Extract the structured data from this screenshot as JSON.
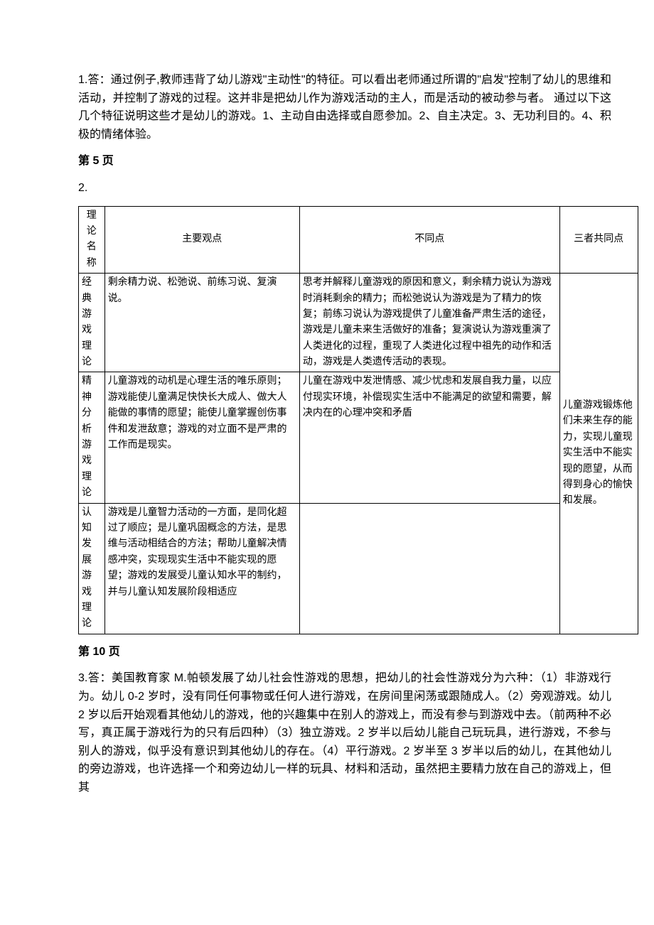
{
  "answer1": "1.答：通过例子,教师违背了幼儿游戏\"主动性\"的特征。可以看出老师通过所谓的\"启发\"控制了幼儿的思维和活动，并控制了游戏的过程。这并非是把幼儿作为游戏活动的主人，而是活动的被动参与者。 通过以下这几个特征说明这些才是幼儿的游戏。1、主动自由选择或自愿参加。2、自主决定。3、无功利目的。4、积极的情绪体验。",
  "page5": "第 5 页",
  "question2": "2.",
  "table": {
    "headers": {
      "name": "理论名称",
      "view": "主要观点",
      "diff": "不同点",
      "common": "三者共同点"
    },
    "rows": [
      {
        "name": "经典游戏理论",
        "view": "剩余精力说、松弛说、前练习说、复演说。",
        "diff": "思考并解释儿童游戏的原因和意义，剩余精力说认为游戏时消耗剩余的精力；而松弛说认为游戏是为了精力的恢复；前练习说认为游戏提供了儿童准备严肃生活的途径，游戏是儿童未来生活做好的准备；复演说认为游戏重演了人类进化的过程，重现了人类进化过程中祖先的动作和活动，游戏是人类遗传活动的表现。"
      },
      {
        "name": "精神分析游戏理论",
        "view": "儿童游戏的动机是心理生活的唯乐原则；游戏能使儿童满足快快长大成人、做大人能做的事情的愿望；能使儿童掌握创伤事件和发泄敌意；游戏的对立面不是严肃的工作而是现实。",
        "diff": "儿童在游戏中发泄情感、减少忧虑和发展自我力量，以应付现实环境，补偿现实生活中不能满足的欲望和需要，解决内在的心理冲突和矛盾"
      },
      {
        "name": "认知发展游戏理论",
        "view": "游戏是儿童智力活动的一方面，是同化超过了顺应；是儿童巩固概念的方法，是思维与活动相结合的方法；帮助儿童解决情感冲突，实现现实生活中不能实现的愿望；游戏的发展受儿童认知水平的制约，并与儿童认知发展阶段相适应",
        "diff": ""
      }
    ],
    "common": "儿童游戏锻炼他们未来生存的能力，实现儿童现实生活中不能实现的愿望，从而得到身心的愉快和发展。"
  },
  "page10": "第 10 页",
  "answer3": "3.答：美国教育家 M.帕顿发展了幼儿社会性游戏的思想，把幼儿的社会性游戏分为六种：（1）非游戏行为。幼儿 0-2 岁时，没有同任何事物或任何人进行游戏，在房间里闲荡或跟随成人。（2）旁观游戏。幼儿 2 岁以后开始观看其他幼儿的游戏，他的兴趣集中在别人的游戏上，而没有参与到游戏中去。（前两种不必写，真正属于游戏行为的只有后四种）（3）独立游戏。2 岁半以后幼儿能自己玩玩具，进行游戏，不参与别人的游戏，似乎没有意识到其他幼儿的存在。（4）平行游戏。2 岁半至 3 岁半以后的幼儿，在其他幼儿的旁边游戏，也许选择一个和旁边幼儿一样的玩具、材料和活动，虽然把主要精力放在自己的游戏上，但其"
}
